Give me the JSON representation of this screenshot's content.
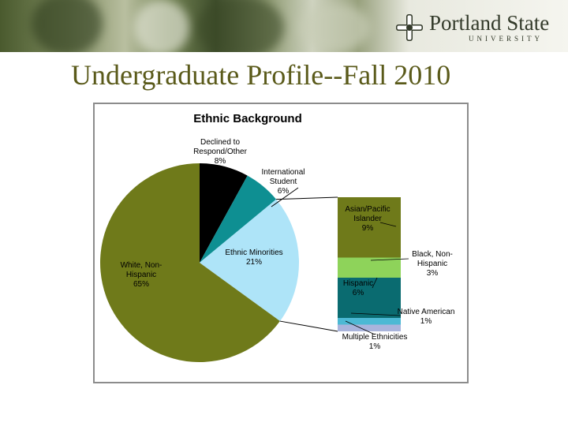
{
  "slide": {
    "title": "Undergraduate Profile--Fall 2010",
    "logo": {
      "name": "Portland State",
      "subtitle": "UNIVERSITY"
    }
  },
  "chart_data": {
    "type": "pie",
    "title": "Ethnic Background",
    "slices": [
      {
        "label": "Declined to Respond/Other",
        "label_lines": [
          "Declined to",
          "Respond/Other"
        ],
        "value_label": "8%",
        "value": 8,
        "color": "#000000"
      },
      {
        "label": "International Student",
        "label_lines": [
          "International",
          "Student"
        ],
        "value_label": "6%",
        "value": 6,
        "color": "#0e8f92"
      },
      {
        "label": "Ethnic Minorities",
        "label_lines": [
          "Ethnic Minorities"
        ],
        "value_label": "21%",
        "value": 21,
        "color": "#aee4f8"
      },
      {
        "label": "White, Non-Hispanic",
        "label_lines": [
          "White, Non-",
          "Hispanic"
        ],
        "value_label": "65%",
        "value": 65,
        "color": "#6f7a1a"
      }
    ],
    "breakdown": {
      "of": "Ethnic Minorities",
      "segments": [
        {
          "label": "Asian/Pacific Islander",
          "label_lines": [
            "Asian/Pacific",
            "Islander"
          ],
          "value_label": "9%",
          "value": 9,
          "color": "#6f7a1a"
        },
        {
          "label": "Black, Non-Hispanic",
          "label_lines": [
            "Black, Non-",
            "Hispanic"
          ],
          "value_label": "3%",
          "value": 3,
          "color": "#8ed35a"
        },
        {
          "label": "Hispanic",
          "label_lines": [
            "Hispanic"
          ],
          "value_label": "6%",
          "value": 6,
          "color": "#0a6b70"
        },
        {
          "label": "Native American",
          "label_lines": [
            "Native American"
          ],
          "value_label": "1%",
          "value": 1,
          "color": "#4cb9d4"
        },
        {
          "label": "Multiple Ethnicities",
          "label_lines": [
            "Multiple Ethnicities"
          ],
          "value_label": "1%",
          "value": 1,
          "color": "#a9b4dc"
        }
      ]
    }
  }
}
